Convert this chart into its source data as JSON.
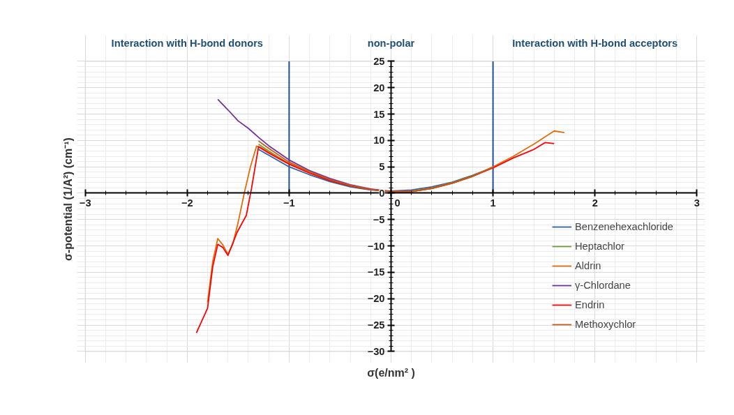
{
  "chart_data": {
    "type": "line",
    "xlabel": "σ(e/nm² )",
    "ylabel": "σ-potential (1/A²) (cm⁻¹)",
    "annotations": [
      "Interaction with H-bond donors",
      "non-polar",
      "Interaction with H-bond acceptors"
    ],
    "xlim": [
      -3,
      3
    ],
    "xticks": [
      -3,
      -2,
      -1,
      0,
      1,
      2,
      3
    ],
    "ylim": [
      -30,
      25
    ],
    "yticks": [
      -30,
      -25,
      -20,
      -15,
      -10,
      -5,
      0,
      5,
      10,
      15,
      20,
      25
    ],
    "grid": true,
    "legend": "bottom right",
    "line_style": "solid",
    "marker": "none",
    "ref_lines": [
      {
        "axis": "x",
        "value": -1,
        "label": null,
        "color": "#1f4e99"
      },
      {
        "axis": "x",
        "value": 1,
        "label": null,
        "color": "#1f4e99"
      }
    ],
    "series": [
      {
        "name": "Benzenehexachloride",
        "color": "#2e5fa8",
        "x": [
          -1.3,
          -1.2,
          -1.0,
          -0.8,
          -0.6,
          -0.4,
          -0.2,
          0,
          0.2,
          0.4,
          0.6,
          0.8,
          1.0
        ],
        "values": [
          8.3,
          7.2,
          5.0,
          3.5,
          2.2,
          1.2,
          0.6,
          0.4,
          0.6,
          1.2,
          2.1,
          3.4,
          4.9
        ]
      },
      {
        "name": "Heptachlor",
        "color": "#70a040",
        "x": [
          -1.3,
          -1.2,
          -1.0,
          -0.8,
          -0.6,
          -0.4,
          -0.2,
          0,
          0.2,
          0.4,
          0.6,
          0.8,
          1.0
        ],
        "values": [
          9.3,
          8.0,
          5.6,
          3.9,
          2.5,
          1.4,
          0.7,
          0.3,
          0.4,
          1.0,
          2.0,
          3.3,
          4.9
        ]
      },
      {
        "name": "Aldrin",
        "color": "#e36c09",
        "x": [
          -1.8,
          -1.75,
          -1.7,
          -1.65,
          -1.6,
          -1.55,
          -1.5,
          -1.44,
          -1.38,
          -1.32,
          -1.28,
          -1.2,
          -1.0,
          -0.8,
          -0.6,
          -0.4,
          -0.2,
          0,
          0.2,
          0.4,
          0.6,
          0.8,
          1.0,
          1.2,
          1.4,
          1.6,
          1.7
        ],
        "values": [
          -20.7,
          -13,
          -8.6,
          -9.8,
          -11.6,
          -9.5,
          -5.5,
          0,
          5,
          8.9,
          8.7,
          7.8,
          5.6,
          3.9,
          2.5,
          1.4,
          0.7,
          0.3,
          0.3,
          0.9,
          1.9,
          3.2,
          5.0,
          7.0,
          9.3,
          11.8,
          11.5
        ]
      },
      {
        "name": "γ-Chlordane",
        "color": "#7030a0",
        "x": [
          -1.7,
          -1.6,
          -1.5,
          -1.4,
          -1.3,
          -1.2,
          -1.0,
          -0.8,
          -0.6,
          -0.4,
          -0.2,
          0,
          0.2
        ],
        "values": [
          17.8,
          15.8,
          13.7,
          12.3,
          10.6,
          9.0,
          6.3,
          4.3,
          2.8,
          1.6,
          0.8,
          0.3,
          0.3
        ]
      },
      {
        "name": "Endrin",
        "color": "#ff0000",
        "x": [
          -1.91,
          -1.8,
          -1.75,
          -1.7,
          -1.65,
          -1.6,
          -1.51,
          -1.42,
          -1.37,
          -1.3,
          -1.2,
          -1.0,
          -0.8,
          -0.6,
          -0.4,
          -0.2,
          0,
          0.2,
          0.4,
          0.6,
          0.8,
          1.0,
          1.2,
          1.4,
          1.51,
          1.6
        ],
        "values": [
          -26.5,
          -21.8,
          -14,
          -9.7,
          -10.3,
          -11.8,
          -7.4,
          -4.2,
          0.8,
          8.8,
          7.6,
          5.5,
          3.8,
          2.4,
          1.4,
          0.7,
          0.3,
          0.3,
          0.9,
          1.9,
          3.2,
          4.8,
          6.7,
          8.3,
          9.6,
          9.4
        ]
      },
      {
        "name": "Methoxychlor",
        "color": "#c55a11",
        "x": [
          -1.3,
          -1.2,
          -1.0,
          -0.8,
          -0.6,
          -0.4,
          -0.2,
          0,
          0.2,
          0.4,
          0.6,
          0.8,
          1.0
        ],
        "values": [
          9.9,
          8.5,
          5.9,
          4.1,
          2.6,
          1.5,
          0.7,
          0.3,
          0.3,
          0.9,
          1.9,
          3.2,
          4.9
        ]
      }
    ]
  }
}
